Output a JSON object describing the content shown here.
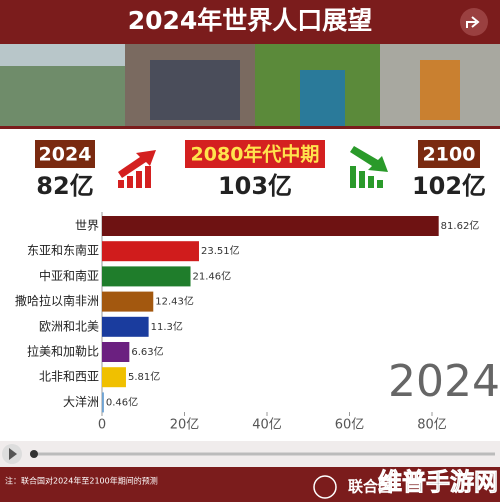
{
  "header": {
    "title": "2024年世界人口展望"
  },
  "stats": [
    {
      "label": "2024",
      "value": "82亿"
    },
    {
      "label": "2080年代中期",
      "value": "103亿"
    },
    {
      "label": "2100",
      "value": "102亿"
    }
  ],
  "chart_data": {
    "type": "bar",
    "orientation": "horizontal",
    "categories": [
      "世界",
      "东亚和东南亚",
      "中亚和南亚",
      "撒哈拉以南非洲",
      "欧洲和北美",
      "拉美和加勒比",
      "北非和西亚",
      "大洋洲"
    ],
    "values": [
      81.62,
      23.51,
      21.46,
      12.43,
      11.3,
      6.63,
      5.81,
      0.46
    ],
    "value_labels": [
      "81.62亿",
      "23.51亿",
      "21.46亿",
      "12.43亿",
      "11.3亿",
      "6.63亿",
      "5.81亿",
      "0.46亿"
    ],
    "colors": [
      "#6e1212",
      "#d01c1c",
      "#1f7d2b",
      "#a3580f",
      "#1a3c9e",
      "#6b2080",
      "#f0c000",
      "#6fa3d3"
    ],
    "xlim": [
      0,
      96
    ],
    "xticks": [
      0,
      {
        "value": 20,
        "label": "20亿"
      },
      {
        "value": 40,
        "label": "40亿"
      },
      {
        "value": 60,
        "label": "60亿"
      },
      {
        "value": 80,
        "label": "80亿"
      }
    ],
    "year_label": "2024"
  },
  "footer": {
    "note": "注：联合国对2024年至2100年期间的预测",
    "logo": "联合国",
    "watermark": "维普手游网"
  }
}
